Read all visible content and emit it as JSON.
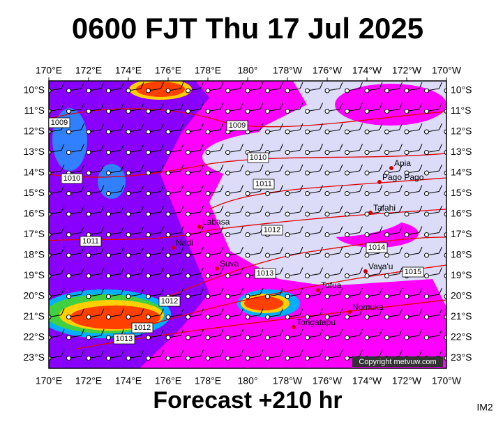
{
  "title": "0600 FJT Thu 17 Jul 2025",
  "footer": "Forecast +210 hr",
  "corner_label": "IM2",
  "copyright": "Copyright metvuw.com",
  "lon_labels": [
    "170°E",
    "172°E",
    "174°E",
    "176°E",
    "178°E",
    "180°",
    "178°W",
    "176°W",
    "174°W",
    "172°W",
    "170°W"
  ],
  "lat_labels": [
    "10°S",
    "11°S",
    "12°S",
    "13°S",
    "14°S",
    "15°S",
    "16°S",
    "17°S",
    "18°S",
    "19°S",
    "20°S",
    "21°S",
    "22°S",
    "23°S"
  ],
  "places": [
    "Apia",
    "Pago Pago",
    "Tafahi",
    "Labasa",
    "Nadi",
    "Suva",
    "Vava'u",
    "Tofua",
    "Nomuka",
    "Tongatapu"
  ],
  "isobar_labels": [
    "1009",
    "1009",
    "1010",
    "1010",
    "1011",
    "1011",
    "1012",
    "1012",
    "1012",
    "1013",
    "1013",
    "1014",
    "1015"
  ]
}
